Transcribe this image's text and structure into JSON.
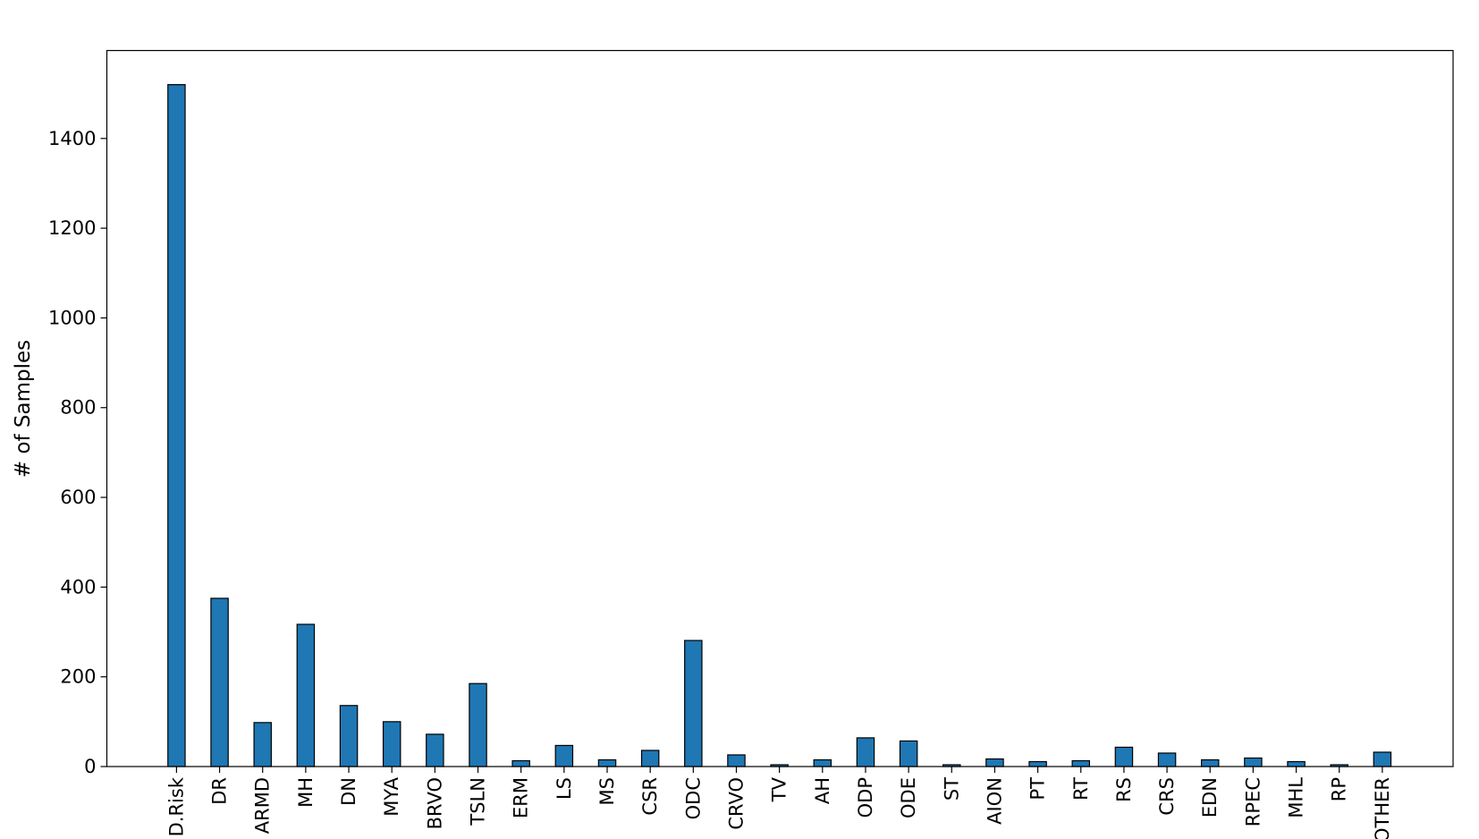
{
  "chart_data": {
    "type": "bar",
    "y_label": "# of Samples",
    "categories": [
      "D.Risk",
      "DR",
      "ARMD",
      "MH",
      "DN",
      "MYA",
      "BRVO",
      "TSLN",
      "ERM",
      "LS",
      "MS",
      "CSR",
      "ODC",
      "CRVO",
      "TV",
      "AH",
      "ODP",
      "ODE",
      "ST",
      "AION",
      "PT",
      "RT",
      "RS",
      "CRS",
      "EDN",
      "RPEC",
      "MHL",
      "RP",
      "OTHER"
    ],
    "values": [
      1520,
      375,
      98,
      317,
      136,
      100,
      72,
      185,
      13,
      47,
      15,
      36,
      281,
      26,
      4,
      15,
      64,
      57,
      4,
      17,
      11,
      13,
      43,
      30,
      15,
      19,
      11,
      4,
      32
    ],
    "color": "#1f77b4",
    "ylim": [
      0,
      1596
    ],
    "yticks": [
      0,
      200,
      400,
      600,
      800,
      1000,
      1200,
      1400
    ]
  }
}
